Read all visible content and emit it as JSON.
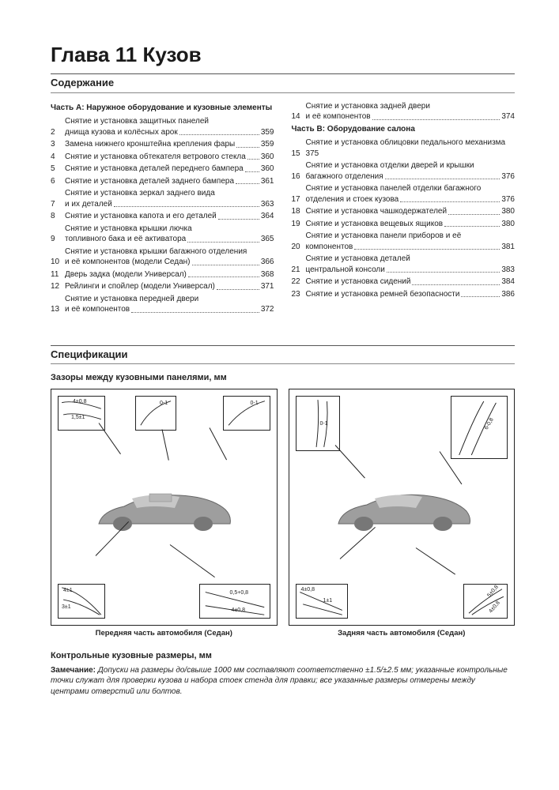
{
  "chapter_title": "Глава 11 Кузов",
  "contents_heading": "Содержание",
  "partA_heading": "Часть А: Наружное оборудование и кузовные элементы",
  "partB_heading": "Часть В: Оборудование салона",
  "toc_left": [
    {
      "n": "2",
      "lines": [
        "Снятие и установка защитных панелей",
        "днища кузова и колёсных арок"
      ],
      "page": "359"
    },
    {
      "n": "3",
      "lines": [
        "Замена нижнего кронштейна крепления фары"
      ],
      "page": "359"
    },
    {
      "n": "4",
      "lines": [
        "Снятие и установка обтекателя ветрового стекла"
      ],
      "page": "360"
    },
    {
      "n": "5",
      "lines": [
        "Снятие и установка деталей переднего бампера"
      ],
      "page": "360"
    },
    {
      "n": "6",
      "lines": [
        "Снятие и установка деталей заднего бампера"
      ],
      "page": "361"
    },
    {
      "n": "7",
      "lines": [
        "Снятие и установка зеркал заднего вида",
        "и их деталей"
      ],
      "page": "363"
    },
    {
      "n": "8",
      "lines": [
        "Снятие и установка капота и его деталей"
      ],
      "page": "364"
    },
    {
      "n": "9",
      "lines": [
        "Снятие и установка крышки лючка",
        "топливного бака и её активатора"
      ],
      "page": "365"
    },
    {
      "n": "10",
      "lines": [
        "Снятие и установка крышки багажного отделения",
        "и её компонентов (модели Седан)"
      ],
      "page": "366"
    },
    {
      "n": "11",
      "lines": [
        "Дверь задка (модели Универсал)"
      ],
      "page": "368"
    },
    {
      "n": "12",
      "lines": [
        "Рейлинги и спойлер (модели Универсал)"
      ],
      "page": "371"
    },
    {
      "n": "13",
      "lines": [
        "Снятие и установка передней двери",
        "и её компонентов"
      ],
      "page": "372"
    }
  ],
  "toc_right_top": [
    {
      "n": "14",
      "lines": [
        "Снятие и установка задней двери",
        "и её компонентов"
      ],
      "page": "374"
    }
  ],
  "toc_right": [
    {
      "n": "15",
      "lines": [
        "Снятие и установка облицовки педального механизма",
        "375"
      ],
      "page": ""
    },
    {
      "n": "16",
      "lines": [
        "Снятие и установка отделки дверей и крышки",
        "багажного отделения"
      ],
      "page": "376"
    },
    {
      "n": "17",
      "lines": [
        "Снятие и установка панелей отделки багажного",
        "отделения и стоек кузова"
      ],
      "page": "376"
    },
    {
      "n": "18",
      "lines": [
        "Снятие и установка чашкодержателей"
      ],
      "page": "380"
    },
    {
      "n": "19",
      "lines": [
        "Снятие и установка вещевых ящиков"
      ],
      "page": "380"
    },
    {
      "n": "20",
      "lines": [
        "Снятие и установка панели приборов и её",
        "компонентов"
      ],
      "page": "381"
    },
    {
      "n": "21",
      "lines": [
        "Снятие и установка деталей",
        "центральной консоли"
      ],
      "page": "383"
    },
    {
      "n": "22",
      "lines": [
        "Снятие и установка сидений"
      ],
      "page": "384"
    },
    {
      "n": "23",
      "lines": [
        "Снятие и установка ремней безопасности"
      ],
      "page": "386"
    }
  ],
  "spec_heading": "Спецификации",
  "gaps_heading": "Зазоры между кузовными панелями, мм",
  "captions": {
    "front": "Передняя часть автомобиля (Седан)",
    "rear": "Задняя часть автомобиля (Седан)"
  },
  "dimensions_heading": "Контрольные кузовные размеры, мм",
  "note_label": "Замечание:",
  "note_text": " Допуски на размеры до/свыше 1000 мм составляют соответственно ±1.5/±2.5 мм; указанные контрольные точки служат для проверки кузова и набора стоек стенда для правки; все указанные размеры отмерены между центрами отверстий или болтов.",
  "diagram": {
    "car_color": "#9a9a9a",
    "border_color": "#222222",
    "front_dims": [
      "4±0,8",
      "1,5±1",
      "0-1",
      "0-1",
      "4±1",
      "3±1",
      "0,5+0,8",
      "4±0,8"
    ],
    "rear_dims": [
      "4±0,8",
      "1±1",
      "0-1",
      "6-0,8",
      "5±0,8",
      "4±0,8"
    ]
  }
}
